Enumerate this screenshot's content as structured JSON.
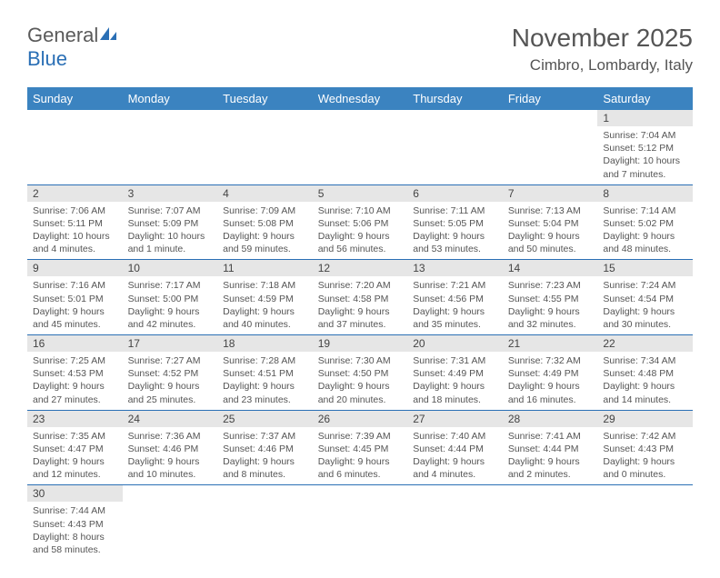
{
  "logo": {
    "text1": "General",
    "text2": "Blue"
  },
  "title": "November 2025",
  "location": "Cimbro, Lombardy, Italy",
  "colors": {
    "header_bg": "#3b83c0",
    "rule": "#2a6fb5",
    "cell_head_bg": "#e6e6e6",
    "text": "#555555"
  },
  "weekdays": [
    "Sunday",
    "Monday",
    "Tuesday",
    "Wednesday",
    "Thursday",
    "Friday",
    "Saturday"
  ],
  "weeks": [
    [
      null,
      null,
      null,
      null,
      null,
      null,
      {
        "n": "1",
        "sr": "7:04 AM",
        "ss": "5:12 PM",
        "dl": "10 hours and 7 minutes."
      }
    ],
    [
      {
        "n": "2",
        "sr": "7:06 AM",
        "ss": "5:11 PM",
        "dl": "10 hours and 4 minutes."
      },
      {
        "n": "3",
        "sr": "7:07 AM",
        "ss": "5:09 PM",
        "dl": "10 hours and 1 minute."
      },
      {
        "n": "4",
        "sr": "7:09 AM",
        "ss": "5:08 PM",
        "dl": "9 hours and 59 minutes."
      },
      {
        "n": "5",
        "sr": "7:10 AM",
        "ss": "5:06 PM",
        "dl": "9 hours and 56 minutes."
      },
      {
        "n": "6",
        "sr": "7:11 AM",
        "ss": "5:05 PM",
        "dl": "9 hours and 53 minutes."
      },
      {
        "n": "7",
        "sr": "7:13 AM",
        "ss": "5:04 PM",
        "dl": "9 hours and 50 minutes."
      },
      {
        "n": "8",
        "sr": "7:14 AM",
        "ss": "5:02 PM",
        "dl": "9 hours and 48 minutes."
      }
    ],
    [
      {
        "n": "9",
        "sr": "7:16 AM",
        "ss": "5:01 PM",
        "dl": "9 hours and 45 minutes."
      },
      {
        "n": "10",
        "sr": "7:17 AM",
        "ss": "5:00 PM",
        "dl": "9 hours and 42 minutes."
      },
      {
        "n": "11",
        "sr": "7:18 AM",
        "ss": "4:59 PM",
        "dl": "9 hours and 40 minutes."
      },
      {
        "n": "12",
        "sr": "7:20 AM",
        "ss": "4:58 PM",
        "dl": "9 hours and 37 minutes."
      },
      {
        "n": "13",
        "sr": "7:21 AM",
        "ss": "4:56 PM",
        "dl": "9 hours and 35 minutes."
      },
      {
        "n": "14",
        "sr": "7:23 AM",
        "ss": "4:55 PM",
        "dl": "9 hours and 32 minutes."
      },
      {
        "n": "15",
        "sr": "7:24 AM",
        "ss": "4:54 PM",
        "dl": "9 hours and 30 minutes."
      }
    ],
    [
      {
        "n": "16",
        "sr": "7:25 AM",
        "ss": "4:53 PM",
        "dl": "9 hours and 27 minutes."
      },
      {
        "n": "17",
        "sr": "7:27 AM",
        "ss": "4:52 PM",
        "dl": "9 hours and 25 minutes."
      },
      {
        "n": "18",
        "sr": "7:28 AM",
        "ss": "4:51 PM",
        "dl": "9 hours and 23 minutes."
      },
      {
        "n": "19",
        "sr": "7:30 AM",
        "ss": "4:50 PM",
        "dl": "9 hours and 20 minutes."
      },
      {
        "n": "20",
        "sr": "7:31 AM",
        "ss": "4:49 PM",
        "dl": "9 hours and 18 minutes."
      },
      {
        "n": "21",
        "sr": "7:32 AM",
        "ss": "4:49 PM",
        "dl": "9 hours and 16 minutes."
      },
      {
        "n": "22",
        "sr": "7:34 AM",
        "ss": "4:48 PM",
        "dl": "9 hours and 14 minutes."
      }
    ],
    [
      {
        "n": "23",
        "sr": "7:35 AM",
        "ss": "4:47 PM",
        "dl": "9 hours and 12 minutes."
      },
      {
        "n": "24",
        "sr": "7:36 AM",
        "ss": "4:46 PM",
        "dl": "9 hours and 10 minutes."
      },
      {
        "n": "25",
        "sr": "7:37 AM",
        "ss": "4:46 PM",
        "dl": "9 hours and 8 minutes."
      },
      {
        "n": "26",
        "sr": "7:39 AM",
        "ss": "4:45 PM",
        "dl": "9 hours and 6 minutes."
      },
      {
        "n": "27",
        "sr": "7:40 AM",
        "ss": "4:44 PM",
        "dl": "9 hours and 4 minutes."
      },
      {
        "n": "28",
        "sr": "7:41 AM",
        "ss": "4:44 PM",
        "dl": "9 hours and 2 minutes."
      },
      {
        "n": "29",
        "sr": "7:42 AM",
        "ss": "4:43 PM",
        "dl": "9 hours and 0 minutes."
      }
    ],
    [
      {
        "n": "30",
        "sr": "7:44 AM",
        "ss": "4:43 PM",
        "dl": "8 hours and 58 minutes."
      },
      null,
      null,
      null,
      null,
      null,
      null
    ]
  ],
  "labels": {
    "sunrise": "Sunrise:",
    "sunset": "Sunset:",
    "daylight": "Daylight:"
  }
}
